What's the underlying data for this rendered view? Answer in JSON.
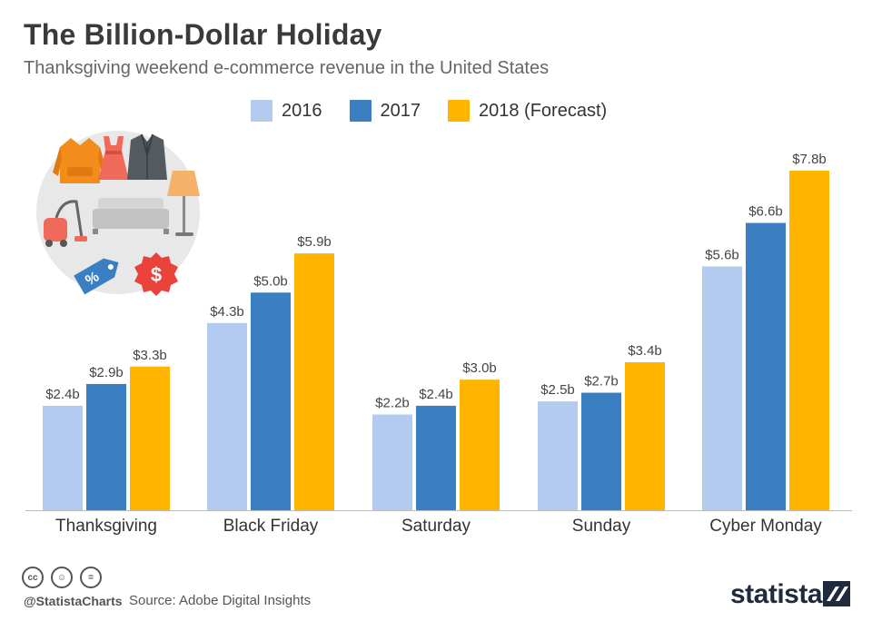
{
  "title": "The Billion-Dollar Holiday",
  "subtitle": "Thanksgiving weekend e-commerce revenue in the United States",
  "footer": {
    "handle": "@StatistaCharts",
    "source": "Source: Adobe Digital Insights",
    "brand": "statista",
    "icons": [
      "cc-icon",
      "attribution-icon",
      "no-derivatives-icon"
    ]
  },
  "colors": {
    "2016": "#b2cbef",
    "2017": "#3a7fc1",
    "2018": "#ffb400",
    "axis": "#bbbbbb",
    "label": "#444444"
  },
  "chart_data": {
    "type": "bar",
    "title": "The Billion-Dollar Holiday",
    "subtitle": "Thanksgiving weekend e-commerce revenue in the United States",
    "xlabel": "",
    "ylabel": "",
    "ylim": [
      0,
      8.3
    ],
    "grid": false,
    "legend_position": "top",
    "categories": [
      "Thanksgiving",
      "Black Friday",
      "Saturday",
      "Sunday",
      "Cyber Monday"
    ],
    "series": [
      {
        "name": "2016",
        "color": "#b2cbef",
        "values": [
          2.4,
          4.3,
          2.2,
          2.5,
          5.6
        ],
        "labels": [
          "$2.4b",
          "$4.3b",
          "$2.2b",
          "$2.5b",
          "$5.6b"
        ]
      },
      {
        "name": "2017",
        "color": "#3a7fc1",
        "values": [
          2.9,
          5.0,
          2.4,
          2.7,
          6.6
        ],
        "labels": [
          "$2.9b",
          "$5.0b",
          "$2.4b",
          "$2.7b",
          "$6.6b"
        ]
      },
      {
        "name": "2018 (Forecast)",
        "color": "#ffb400",
        "values": [
          3.3,
          5.9,
          3.0,
          3.4,
          7.8
        ],
        "labels": [
          "$3.3b",
          "$5.9b",
          "$3.0b",
          "$3.4b",
          "$7.8b"
        ]
      }
    ]
  }
}
